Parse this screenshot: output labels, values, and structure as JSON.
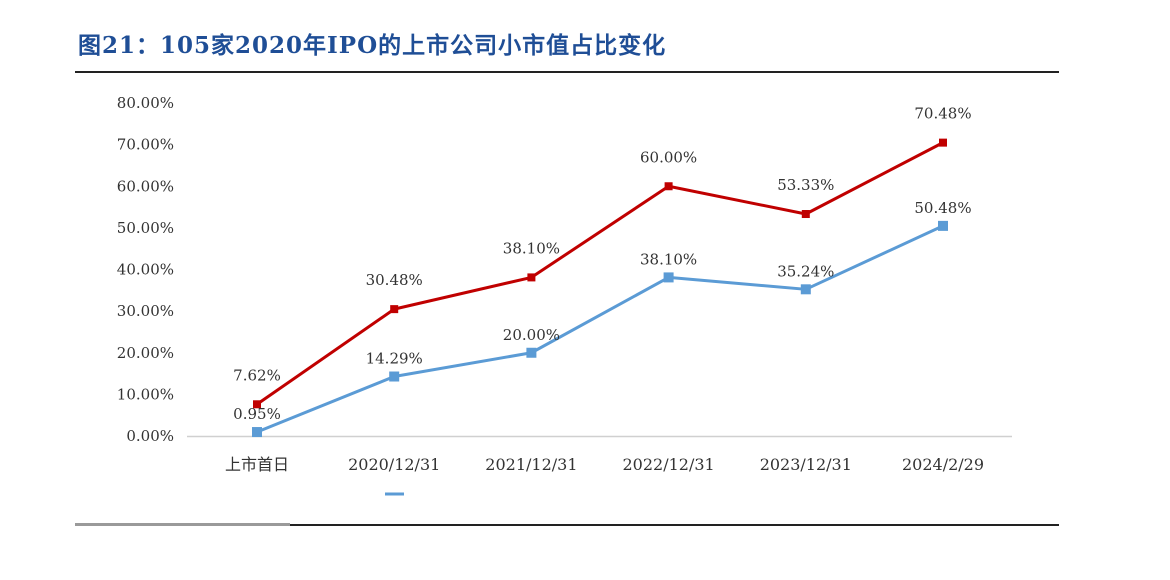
{
  "title": "图21：105家2020年IPO的上市公司小市值占比变化",
  "colors": {
    "title": "#1f4e96",
    "series_red": "#c00000",
    "series_blue": "#5b9bd5"
  },
  "chart_data": {
    "type": "line",
    "x": [
      "上市首日",
      "2020/12/31",
      "2021/12/31",
      "2022/12/31",
      "2023/12/31",
      "2024/2/29"
    ],
    "series": [
      {
        "values": [
          7.62,
          30.48,
          38.1,
          60.0,
          53.33,
          70.48
        ],
        "labels": [
          "7.62%",
          "30.48%",
          "38.10%",
          "60.00%",
          "53.33%",
          "70.48%"
        ],
        "color": "#c00000",
        "marker": "square"
      },
      {
        "values": [
          0.95,
          14.29,
          20.0,
          38.1,
          35.24,
          50.48
        ],
        "labels": [
          "0.95%",
          "14.29%",
          "20.00%",
          "38.10%",
          "35.24%",
          "50.48%"
        ],
        "color": "#5b9bd5",
        "marker": "square"
      }
    ],
    "ylim": [
      0,
      80
    ],
    "yticks": [
      0,
      10,
      20,
      30,
      40,
      50,
      60,
      70,
      80
    ],
    "ytick_labels": [
      "0.00%",
      "10.00%",
      "20.00%",
      "30.00%",
      "40.00%",
      "50.00%",
      "60.00%",
      "70.00%",
      "80.00%"
    ],
    "xlabel": "",
    "ylabel": "",
    "grid": false
  }
}
